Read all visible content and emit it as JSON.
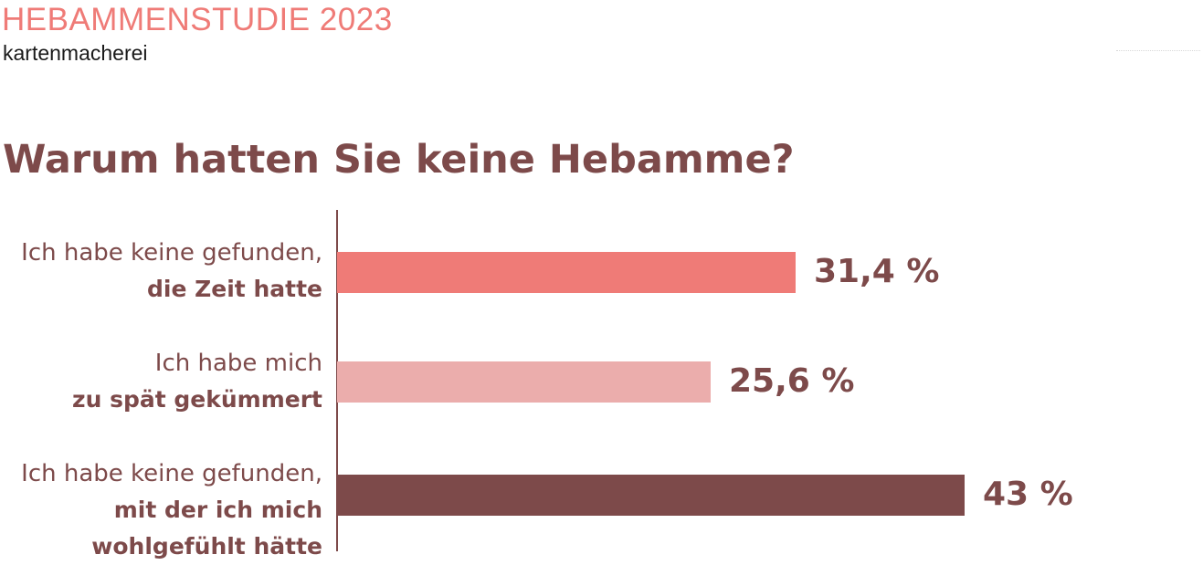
{
  "header": {
    "study": "HEBAMMENSTUDIE 2023",
    "brand": "kartenmacherei"
  },
  "colors": {
    "text": "#7d4a4a",
    "header": "#ef7b77"
  },
  "chart_data": {
    "type": "bar",
    "orientation": "horizontal",
    "title": "Warum hatten Sie keine Hebamme?",
    "categories": [
      "Ich habe keine gefunden, die Zeit hatte",
      "Ich habe mich zu spät gekümmert",
      "Ich habe keine gefunden, mit der ich mich wohlgefühlt hätte"
    ],
    "category_lines": [
      [
        {
          "text": "Ich habe keine gefunden,",
          "bold": false
        },
        {
          "text": "die Zeit hatte",
          "bold": true
        }
      ],
      [
        {
          "text": "Ich habe mich",
          "bold": false
        },
        {
          "text": "zu spät gekümmert",
          "bold": true
        }
      ],
      [
        {
          "text": "Ich habe keine gefunden,",
          "bold": false
        },
        {
          "text": "mit der ich mich",
          "bold": true
        },
        {
          "text": "wohlgefühlt hätte",
          "bold": true
        }
      ]
    ],
    "values": [
      31.4,
      25.6,
      43
    ],
    "value_labels": [
      "31,4 %",
      "25,6 %",
      "43 %"
    ],
    "bar_colors": [
      "#ef7b77",
      "#ebadac",
      "#7d4a4a"
    ],
    "unit": "%",
    "xlim": [
      0,
      100
    ],
    "grid": false,
    "legend": "none"
  }
}
